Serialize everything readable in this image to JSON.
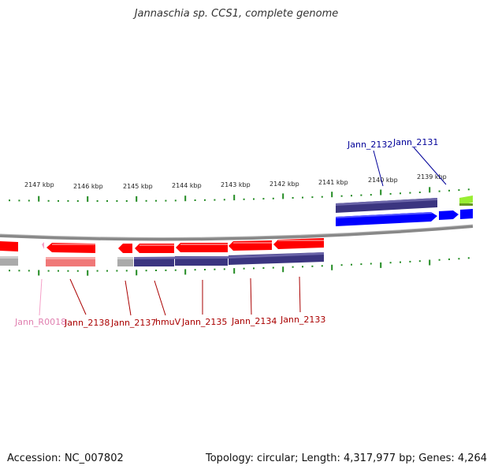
{
  "title": "Jannaschia sp. CCS1, complete genome",
  "accession": "Accession: NC_007802",
  "summary": "Topology: circular; Length: 4,317,977 bp; Genes: 4,264",
  "ticks": [
    "2147 kbp",
    "2146 kbp",
    "2145 kbp",
    "2144 kbp",
    "2143 kbp",
    "2142 kbp",
    "2141 kbp",
    "2140 kbp",
    "2139 kbp"
  ],
  "gene_labels": {
    "top": [
      "Jann_2132",
      "Jann_2131"
    ],
    "bottom": [
      "Jann_R0018",
      "Jann_2138",
      "Jann_2137",
      "hmuV",
      "Jann_2135",
      "Jann_2134",
      "Jann_2133"
    ]
  },
  "colors": {
    "tick": "#228b22",
    "cds_forward": "#0000ff",
    "cds_reverse": "#ff0000",
    "gene_track": "#3b3580",
    "trna": "#f5a0c8",
    "other_feature": "#99ee33",
    "label_forward": "#000099",
    "label_reverse": "#aa0000",
    "label_rna": "#e080b0",
    "backbone": "#888888"
  }
}
